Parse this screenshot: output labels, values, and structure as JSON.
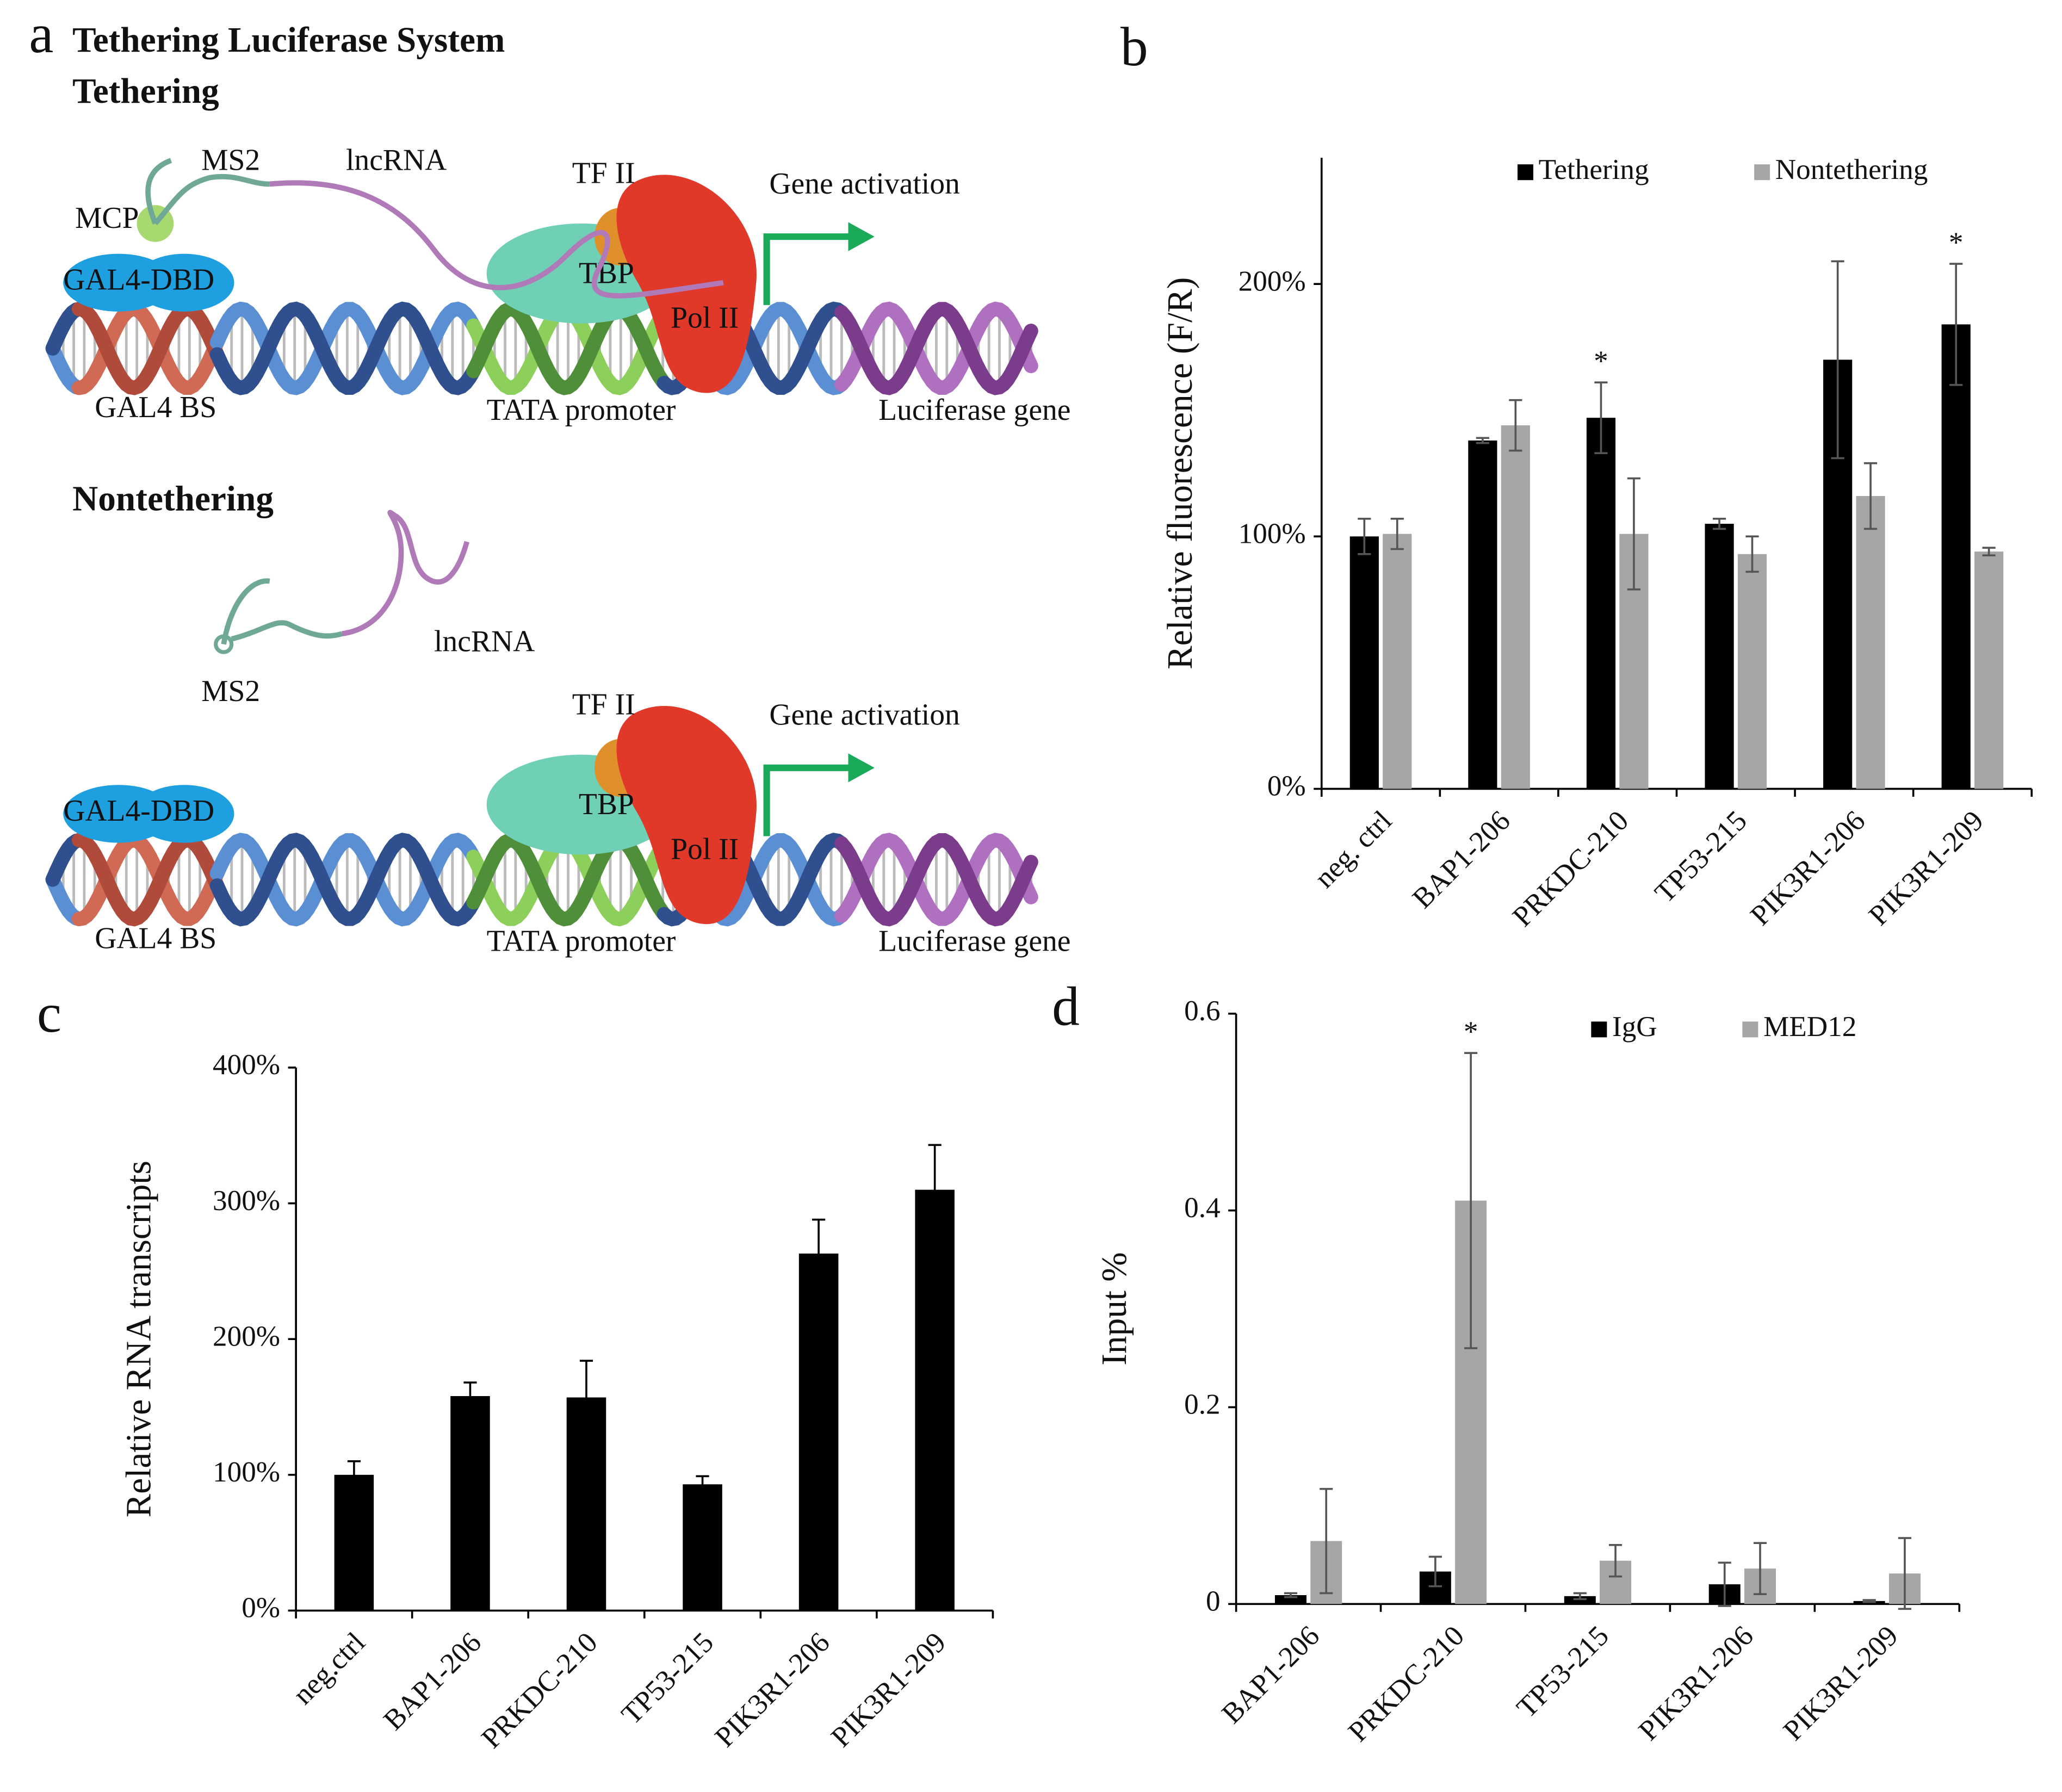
{
  "diagram": {
    "label": "a",
    "title": "Tethering Luciferase System",
    "tethering": {
      "title": "Tethering",
      "ms2": "MS2",
      "lncrna": "lncRNA",
      "mcp": "MCP",
      "gal4_dbd": "GAL4-DBD",
      "tf2": "TF II",
      "tbp": "TBP",
      "pol2": "Pol II",
      "activation": "Gene activation",
      "gal4_bs": "GAL4 BS",
      "tata": "TATA promoter",
      "luciferase": "Luciferase gene"
    },
    "nontethering": {
      "title": "Nontethering",
      "ms2": "MS2",
      "lncrna": "lncRNA",
      "gal4_dbd": "GAL4-DBD",
      "tf2": "TF II",
      "tbp": "TBP",
      "pol2": "Pol II",
      "activation": "Gene activation",
      "gal4_bs": "GAL4 BS",
      "tata": "TATA promoter",
      "luciferase": "Luciferase gene"
    }
  },
  "chart_data": [
    {
      "type": "bar",
      "label": "b",
      "ylabel": "Relative fluorescence (F/R)",
      "categories": [
        "neg. ctrl",
        "BAP1-206",
        "PRKDC-210",
        "TP53-215",
        "PIK3R1-206",
        "PIK3R1-209"
      ],
      "series": [
        {
          "name": "Tethering",
          "color": "#000000",
          "values": [
            100,
            138,
            147,
            105,
            170,
            184
          ],
          "errors": [
            7,
            1,
            14,
            2,
            39,
            24
          ]
        },
        {
          "name": "Nontethering",
          "color": "#a6a6a6",
          "values": [
            101,
            144,
            101,
            93,
            116,
            94
          ],
          "errors": [
            6,
            10,
            22,
            7,
            13,
            1.5
          ]
        }
      ],
      "ylim": [
        0,
        250
      ],
      "yticks": [
        {
          "value": 0,
          "label": "0%"
        },
        {
          "value": 100,
          "label": "100%"
        },
        {
          "value": 200,
          "label": "200%"
        }
      ],
      "legend": "top",
      "annotations": [
        {
          "text": "*",
          "category": "PRKDC-210",
          "series": "Tethering"
        },
        {
          "text": "*",
          "category": "PIK3R1-209",
          "series": "Tethering"
        }
      ]
    },
    {
      "type": "bar",
      "label": "c",
      "ylabel": "Relative RNA transcripts",
      "categories": [
        "neg.ctrl",
        "BAP1-206",
        "PRKDC-210",
        "TP53-215",
        "PIK3R1-206",
        "PIK3R1-209"
      ],
      "series": [
        {
          "color": "#000000",
          "values": [
            100,
            158,
            157,
            93,
            263,
            310
          ],
          "errors": [
            10,
            10,
            27,
            6,
            25,
            33
          ]
        }
      ],
      "ylim": [
        0,
        400
      ],
      "yticks": [
        {
          "value": 0,
          "label": "0%"
        },
        {
          "value": 100,
          "label": "100%"
        },
        {
          "value": 200,
          "label": "200%"
        },
        {
          "value": 300,
          "label": "300%"
        },
        {
          "value": 400,
          "label": "400%"
        }
      ]
    },
    {
      "type": "bar",
      "label": "d",
      "ylabel": "Input %",
      "categories": [
        "BAP1-206",
        "PRKDC-210",
        "TP53-215",
        "PIK3R1-206",
        "PIK3R1-209"
      ],
      "series": [
        {
          "name": "IgG",
          "color": "#000000",
          "values": [
            0.009,
            0.033,
            0.008,
            0.02,
            0.003
          ],
          "errors": [
            0.002,
            0.015,
            0.003,
            0.022,
            0.001
          ]
        },
        {
          "name": "MED12",
          "color": "#a6a6a6",
          "values": [
            0.064,
            0.41,
            0.044,
            0.036,
            0.031
          ],
          "errors": [
            0.053,
            0.15,
            0.016,
            0.026,
            0.036
          ]
        }
      ],
      "ylim": [
        0,
        0.6
      ],
      "yticks": [
        0,
        0.2,
        0.4,
        0.6
      ],
      "legend": "top",
      "annotations": [
        {
          "text": "*",
          "category": "PRKDC-210",
          "series": "MED12"
        }
      ]
    }
  ]
}
